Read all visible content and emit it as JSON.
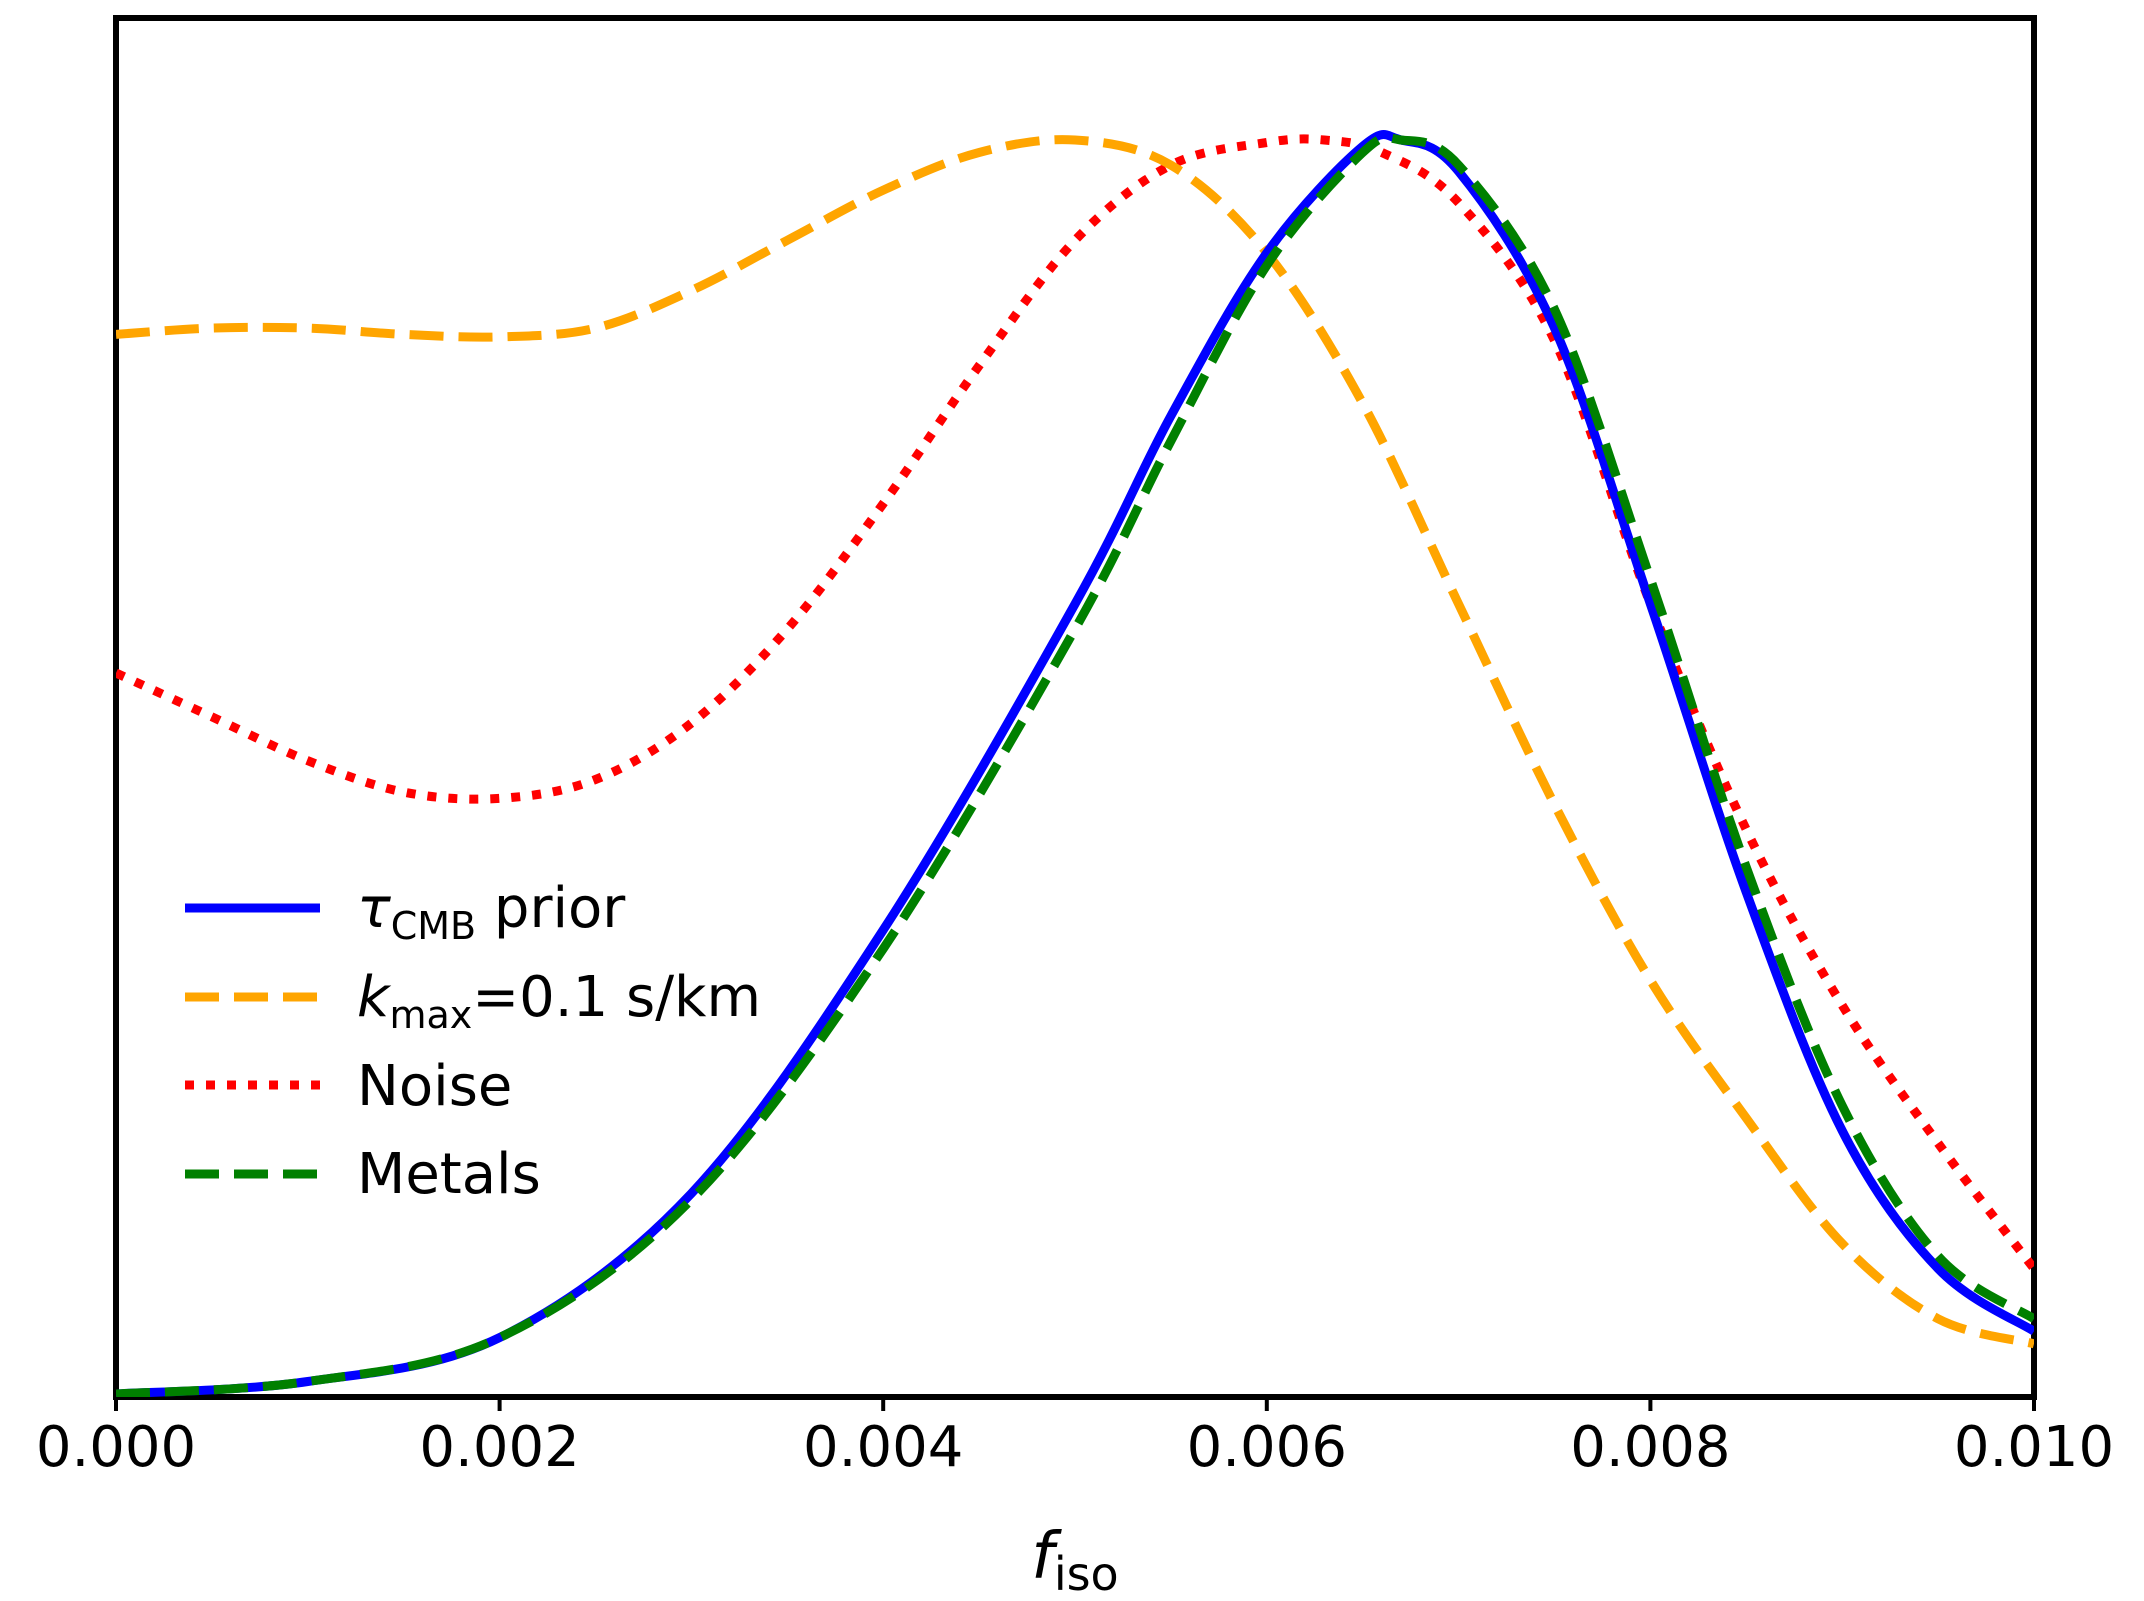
{
  "chart_data": {
    "type": "line",
    "xlabel": {
      "main": "f",
      "sub": "iso"
    },
    "xlim": [
      0.0,
      0.01
    ],
    "ylim": [
      0.0,
      1.0
    ],
    "x_ticks": [
      "0.000",
      "0.002",
      "0.004",
      "0.006",
      "0.008",
      "0.010"
    ],
    "x_tick_values": [
      0.0,
      0.002,
      0.004,
      0.006,
      0.008,
      0.01
    ],
    "y_ticks_shown": false,
    "grid": false,
    "legend_position": "center-left",
    "series": [
      {
        "key": "tau",
        "legend": {
          "main": "τ",
          "sub": "CMB",
          "rest": " prior"
        },
        "color": "#0000ff",
        "style": "solid",
        "x": [
          0.0,
          0.001,
          0.002,
          0.003,
          0.004,
          0.005,
          0.0055,
          0.006,
          0.0065,
          0.0067,
          0.007,
          0.0075,
          0.008,
          0.0085,
          0.009,
          0.0095,
          0.01
        ],
        "y": [
          0.0,
          0.01,
          0.045,
          0.16,
          0.37,
          0.63,
          0.78,
          0.91,
          0.995,
          1.0,
          0.975,
          0.85,
          0.63,
          0.4,
          0.21,
          0.1,
          0.05
        ]
      },
      {
        "key": "kmax",
        "legend": {
          "main": "k",
          "sub": "max",
          "rest": "=0.1 s/km"
        },
        "color": "#ffa500",
        "style": "dashed",
        "x": [
          0.0,
          0.0005,
          0.001,
          0.0015,
          0.002,
          0.0025,
          0.003,
          0.0035,
          0.004,
          0.0045,
          0.005,
          0.0055,
          0.006,
          0.0065,
          0.007,
          0.0075,
          0.008,
          0.0085,
          0.009,
          0.0095,
          0.01
        ],
        "y": [
          0.845,
          0.85,
          0.85,
          0.845,
          0.843,
          0.85,
          0.88,
          0.92,
          0.96,
          0.99,
          1.0,
          0.98,
          0.91,
          0.79,
          0.63,
          0.47,
          0.33,
          0.22,
          0.12,
          0.06,
          0.04
        ]
      },
      {
        "key": "noise",
        "legend": {
          "main": "Noise",
          "sub": "",
          "rest": ""
        },
        "color": "#ff0000",
        "style": "dotted",
        "x": [
          0.0,
          0.0005,
          0.001,
          0.0015,
          0.002,
          0.0025,
          0.003,
          0.0035,
          0.004,
          0.0045,
          0.005,
          0.0055,
          0.006,
          0.0063,
          0.0066,
          0.007,
          0.0075,
          0.008,
          0.0085,
          0.009,
          0.0095,
          0.01
        ],
        "y": [
          0.575,
          0.54,
          0.505,
          0.48,
          0.475,
          0.49,
          0.535,
          0.61,
          0.71,
          0.82,
          0.92,
          0.98,
          0.998,
          1.0,
          0.99,
          0.95,
          0.84,
          0.63,
          0.45,
          0.31,
          0.2,
          0.1
        ]
      },
      {
        "key": "metals",
        "legend": {
          "main": "Metals",
          "sub": "",
          "rest": ""
        },
        "color": "#008000",
        "style": "dashed",
        "x": [
          0.0,
          0.001,
          0.002,
          0.003,
          0.004,
          0.005,
          0.0055,
          0.006,
          0.0065,
          0.0067,
          0.007,
          0.0075,
          0.008,
          0.0085,
          0.009,
          0.0095,
          0.01
        ],
        "y": [
          0.0,
          0.01,
          0.045,
          0.155,
          0.355,
          0.61,
          0.76,
          0.9,
          0.99,
          1.0,
          0.98,
          0.865,
          0.65,
          0.42,
          0.23,
          0.11,
          0.06
        ]
      }
    ]
  }
}
